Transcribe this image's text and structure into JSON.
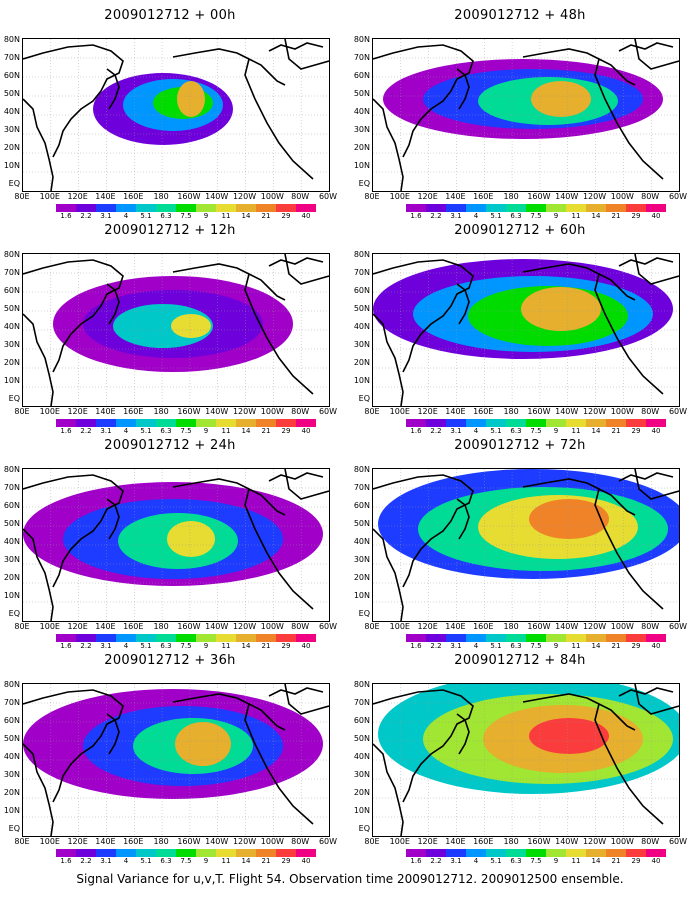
{
  "panels": [
    {
      "title": "2009012712 + 00h"
    },
    {
      "title": "2009012712 + 48h"
    },
    {
      "title": "2009012712 + 12h"
    },
    {
      "title": "2009012712 + 60h"
    },
    {
      "title": "2009012712 + 24h"
    },
    {
      "title": "2009012712 + 72h"
    },
    {
      "title": "2009012712 + 36h"
    },
    {
      "title": "2009012712 + 84h"
    }
  ],
  "lat_labels": [
    "80N",
    "70N",
    "60N",
    "50N",
    "40N",
    "30N",
    "20N",
    "10N",
    "EQ"
  ],
  "lon_labels": [
    "80E",
    "100E",
    "120E",
    "140E",
    "160E",
    "180",
    "160W",
    "140W",
    "120W",
    "100W",
    "80W",
    "60W"
  ],
  "colorbar": {
    "labels": [
      "1.6",
      "2.2",
      "3.1",
      "4",
      "5.1",
      "6.3",
      "7.5",
      "9",
      "11",
      "14",
      "21",
      "29",
      "40"
    ],
    "colors": [
      "#a000c8",
      "#6e00dc",
      "#1e3cff",
      "#0096ff",
      "#00c8c8",
      "#00dc96",
      "#00dc00",
      "#a0e632",
      "#e6dc32",
      "#e6af2d",
      "#f08228",
      "#fa3c3c",
      "#f00082"
    ]
  },
  "caption": "Signal Variance for u,v,T. Flight 54. Observation time 2009012712. 2009012500 ensemble."
}
